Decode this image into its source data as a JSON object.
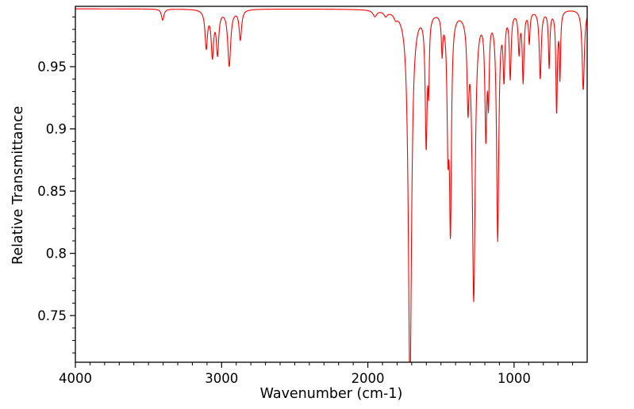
{
  "chart_data": {
    "type": "line",
    "chart_kind": "infrared-transmittance-spectrum",
    "title": "",
    "xlabel": "Wavenumber (cm-1)",
    "ylabel": "Relative Transmittance",
    "x_axis_reversed": true,
    "xlim": [
      4000,
      500
    ],
    "ylim": [
      0.7125,
      0.9985
    ],
    "x_major_ticks": [
      {
        "value": 4000,
        "label": "4000"
      },
      {
        "value": 3000,
        "label": "3000"
      },
      {
        "value": 2000,
        "label": "2000"
      },
      {
        "value": 1000,
        "label": "1000"
      }
    ],
    "y_major_ticks": [
      {
        "value": 0.75,
        "label": "0.75"
      },
      {
        "value": 0.8,
        "label": "0.8"
      },
      {
        "value": 0.85,
        "label": "0.85"
      },
      {
        "value": 0.9,
        "label": "0.9"
      },
      {
        "value": 0.95,
        "label": "0.95"
      }
    ],
    "x_minor_step": 100,
    "y_minor_step": 0.01,
    "grid": false,
    "legend": null,
    "line_color": "#ff0000",
    "axis_color": "#000000",
    "background_color": "#ffffff",
    "baseline_transmittance": 0.9965,
    "curve_model": "transmittance(w) = baseline - sum_i depth_i * width_i^2 / ((w - wavenumber_i)^2 + width_i^2), clipped to the plot box",
    "peaks": [
      {
        "wavenumber": 3403,
        "depth": 0.009,
        "width": 10
      },
      {
        "wavenumber": 3105,
        "depth": 0.03,
        "width": 10
      },
      {
        "wavenumber": 3063,
        "depth": 0.036,
        "width": 10
      },
      {
        "wavenumber": 3028,
        "depth": 0.034,
        "width": 10
      },
      {
        "wavenumber": 2948,
        "depth": 0.045,
        "width": 12
      },
      {
        "wavenumber": 2872,
        "depth": 0.024,
        "width": 10
      },
      {
        "wavenumber": 1952,
        "depth": 0.005,
        "width": 16
      },
      {
        "wavenumber": 1878,
        "depth": 0.004,
        "width": 14
      },
      {
        "wavenumber": 1810,
        "depth": 0.004,
        "width": 14
      },
      {
        "wavenumber": 1712,
        "depth": 0.306,
        "width": 13
      },
      {
        "wavenumber": 1601,
        "depth": 0.105,
        "width": 8
      },
      {
        "wavenumber": 1584,
        "depth": 0.05,
        "width": 5
      },
      {
        "wavenumber": 1492,
        "depth": 0.03,
        "width": 6
      },
      {
        "wavenumber": 1452,
        "depth": 0.095,
        "width": 8
      },
      {
        "wavenumber": 1435,
        "depth": 0.165,
        "width": 8
      },
      {
        "wavenumber": 1315,
        "depth": 0.065,
        "width": 8
      },
      {
        "wavenumber": 1276,
        "depth": 0.23,
        "width": 12
      },
      {
        "wavenumber": 1193,
        "depth": 0.095,
        "width": 8
      },
      {
        "wavenumber": 1175,
        "depth": 0.06,
        "width": 6
      },
      {
        "wavenumber": 1112,
        "depth": 0.182,
        "width": 9
      },
      {
        "wavenumber": 1069,
        "depth": 0.05,
        "width": 7
      },
      {
        "wavenumber": 1026,
        "depth": 0.052,
        "width": 7
      },
      {
        "wavenumber": 966,
        "depth": 0.032,
        "width": 7
      },
      {
        "wavenumber": 938,
        "depth": 0.056,
        "width": 7
      },
      {
        "wavenumber": 896,
        "depth": 0.025,
        "width": 6
      },
      {
        "wavenumber": 821,
        "depth": 0.055,
        "width": 8
      },
      {
        "wavenumber": 760,
        "depth": 0.045,
        "width": 6
      },
      {
        "wavenumber": 709,
        "depth": 0.082,
        "width": 6
      },
      {
        "wavenumber": 686,
        "depth": 0.052,
        "width": 5
      },
      {
        "wavenumber": 527,
        "depth": 0.065,
        "width": 9
      }
    ]
  }
}
